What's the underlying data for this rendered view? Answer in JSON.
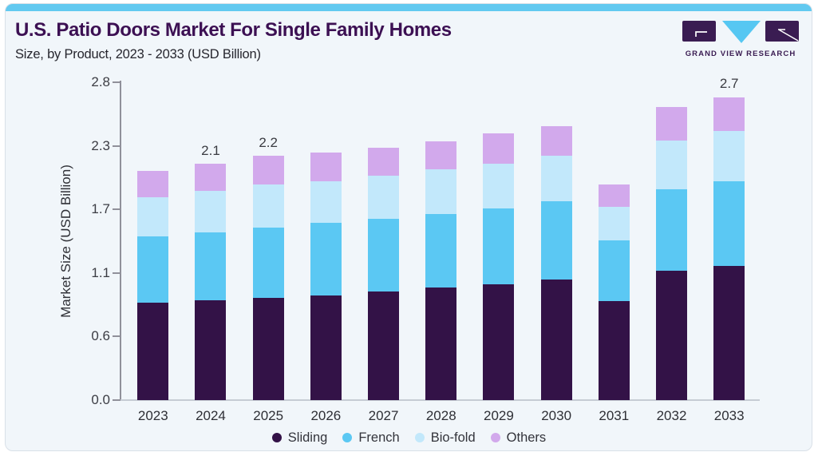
{
  "header": {
    "title": "U.S. Patio Doors Market For Single Family Homes",
    "subtitle": "Size, by Product, 2023 - 2033 (USD Billion)",
    "brand_name": "GRAND VIEW RESEARCH"
  },
  "colors": {
    "accent_bar": "#62c9f0",
    "card_background": "#f1f6fa",
    "card_border": "#d9e0e8",
    "title_text": "#3c1053",
    "brand_purple": "#3a1c52",
    "brand_blue": "#56c7f2",
    "axis_line": "#90909a",
    "baseline": "#c6ccd4",
    "axis_text": "#3c3d44"
  },
  "chart_data": {
    "type": "bar",
    "stacked": true,
    "title": "U.S. Patio Doors Market For Single Family Homes",
    "subtitle": "Size, by Product, 2023 - 2033 (USD Billion)",
    "xlabel": "",
    "ylabel": "Market Size (USD Billion)",
    "categories": [
      "2023",
      "2024",
      "2025",
      "2026",
      "2027",
      "2028",
      "2029",
      "2030",
      "2031",
      "2032",
      "2033"
    ],
    "series": [
      {
        "name": "Sliding",
        "color": "#331247",
        "values": [
          0.86,
          0.88,
          0.9,
          0.92,
          0.96,
          0.99,
          1.02,
          1.06,
          0.87,
          1.14,
          1.18
        ]
      },
      {
        "name": "French",
        "color": "#5bc8f3",
        "values": [
          0.58,
          0.6,
          0.62,
          0.64,
          0.64,
          0.65,
          0.67,
          0.69,
          0.54,
          0.72,
          0.75
        ]
      },
      {
        "name": "Bio-fold",
        "color": "#c2e8fb",
        "values": [
          0.35,
          0.36,
          0.38,
          0.37,
          0.38,
          0.39,
          0.39,
          0.4,
          0.29,
          0.43,
          0.44
        ]
      },
      {
        "name": "Others",
        "color": "#d2a9ec",
        "values": [
          0.23,
          0.24,
          0.25,
          0.25,
          0.24,
          0.25,
          0.27,
          0.26,
          0.2,
          0.29,
          0.3
        ]
      }
    ],
    "bar_total_labels": [
      "",
      "2.1",
      "2.2",
      "",
      "",
      "",
      "",
      "",
      "",
      "",
      "2.7"
    ],
    "y_ticks": [
      "0.0",
      "0.6",
      "1.1",
      "1.7",
      "2.3",
      "2.8"
    ],
    "ylim": [
      0,
      2.8
    ],
    "grid": false,
    "legend_position": "bottom"
  }
}
